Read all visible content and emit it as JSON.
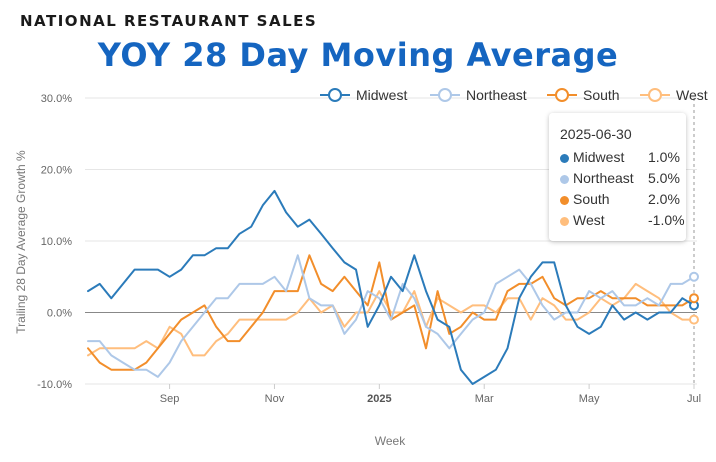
{
  "header": {
    "overline": "NATIONAL RESTAURANT SALES",
    "title": "YOY 28 Day Moving Average"
  },
  "chart_data": {
    "type": "line",
    "title": "YOY 28 Day Moving Average",
    "xlabel": "Week",
    "ylabel": "Trailing 28 Day Average Growth %",
    "ylim": [
      -10,
      30
    ],
    "y_ticks": [
      -10,
      0,
      10,
      20,
      30
    ],
    "y_tick_labels": [
      "-10.0%",
      "0.0%",
      "10.0%",
      "20.0%",
      "30.0%"
    ],
    "x_ticks": [
      {
        "label": "Sep",
        "week": 7,
        "bold": false
      },
      {
        "label": "Nov",
        "week": 16,
        "bold": false
      },
      {
        "label": "2025",
        "week": 25,
        "bold": true
      },
      {
        "label": "Mar",
        "week": 34,
        "bold": false
      },
      {
        "label": "May",
        "week": 43,
        "bold": false
      },
      {
        "label": "Jul",
        "week": 52,
        "bold": false
      }
    ],
    "legend": "top-right",
    "grid": true,
    "series": [
      {
        "name": "Midwest",
        "color": "#2b7bba",
        "values": [
          3,
          4,
          2,
          4,
          6,
          6,
          6,
          5,
          6,
          8,
          8,
          9,
          9,
          11,
          12,
          15,
          17,
          14,
          12,
          13,
          11,
          9,
          7,
          6,
          -2,
          1,
          5,
          3,
          8,
          3,
          -1,
          -2,
          -8,
          -10,
          -9,
          -8,
          -5,
          2,
          5,
          7,
          7,
          1,
          -2,
          -3,
          -2,
          1,
          -1,
          0,
          -1,
          0,
          0,
          2,
          1
        ]
      },
      {
        "name": "Northeast",
        "color": "#aec8e8",
        "values": [
          -4,
          -4,
          -6,
          -7,
          -8,
          -8,
          -9,
          -7,
          -4,
          -2,
          0,
          2,
          2,
          4,
          4,
          4,
          5,
          3,
          8,
          2,
          1,
          1,
          -3,
          -1,
          3,
          2,
          -1,
          4,
          2,
          -2,
          -3,
          -5,
          -3,
          -1,
          0,
          4,
          5,
          6,
          4,
          1,
          -1,
          0,
          0,
          3,
          2,
          3,
          1,
          1,
          2,
          1,
          4,
          4,
          5
        ]
      },
      {
        "name": "South",
        "color": "#f28e2b",
        "values": [
          -5,
          -7,
          -8,
          -8,
          -8,
          -7,
          -5,
          -3,
          -1,
          0,
          1,
          -2,
          -4,
          -4,
          -2,
          0,
          3,
          3,
          3,
          8,
          4,
          3,
          5,
          3,
          1,
          7,
          -1,
          0,
          1,
          -5,
          3,
          -3,
          -2,
          0,
          -1,
          -1,
          3,
          4,
          4,
          5,
          2,
          1,
          2,
          2,
          3,
          2,
          2,
          2,
          1,
          1,
          1,
          1,
          2
        ]
      },
      {
        "name": "West",
        "color": "#ffbe7d",
        "values": [
          -6,
          -5,
          -5,
          -5,
          -5,
          -4,
          -5,
          -2,
          -3,
          -6,
          -6,
          -4,
          -3,
          -1,
          -1,
          -1,
          -1,
          -1,
          0,
          2,
          0,
          1,
          -2,
          0,
          0,
          3,
          0,
          0,
          3,
          -2,
          2,
          1,
          0,
          1,
          1,
          0,
          2,
          2,
          -1,
          2,
          1,
          -1,
          -1,
          0,
          2,
          1,
          2,
          4,
          3,
          2,
          0,
          -1,
          -1
        ]
      }
    ],
    "tooltip": {
      "date": "2025-06-30",
      "rows": [
        {
          "name": "Midwest",
          "value": "1.0%",
          "color": "#2b7bba"
        },
        {
          "name": "Northeast",
          "value": "5.0%",
          "color": "#aec8e8"
        },
        {
          "name": "South",
          "value": "2.0%",
          "color": "#f28e2b"
        },
        {
          "name": "West",
          "value": "-1.0%",
          "color": "#ffbe7d"
        }
      ]
    }
  }
}
